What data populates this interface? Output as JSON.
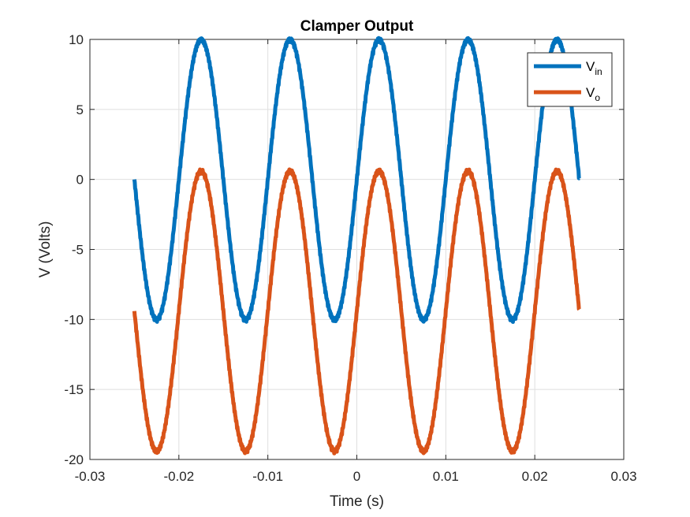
{
  "chart_data": {
    "type": "line",
    "title": "Clamper Output",
    "xlabel": "Time (s)",
    "ylabel": "V (Volts)",
    "xlim": [
      -0.03,
      0.03
    ],
    "ylim": [
      -20,
      10
    ],
    "xticks": [
      -0.03,
      -0.02,
      -0.01,
      0,
      0.01,
      0.02,
      0.03
    ],
    "xtick_labels": [
      "-0.03",
      "-0.02",
      "-0.01",
      "0",
      "0.01",
      "0.02",
      "0.03"
    ],
    "yticks": [
      -20,
      -15,
      -10,
      -5,
      0,
      5,
      10
    ],
    "ytick_labels": [
      "-20",
      "-15",
      "-10",
      "-5",
      "0",
      "5",
      "10"
    ],
    "grid": true,
    "legend_position": "top-right",
    "x_range": [
      -0.025,
      0.025
    ],
    "series": [
      {
        "name_main": "V",
        "name_sub": "in",
        "color": "#0072BD",
        "amplitude": 10,
        "offset": 0,
        "frequency_hz": 100,
        "phase_note": "sine starting at 0 at t=-0.025, peaks near -0.0175, -0.0075, 0.0025, 0.0125, 0.0225"
      },
      {
        "name_main": "V",
        "name_sub": "o",
        "color": "#D95319",
        "amplitude": 10,
        "offset": -9.4,
        "frequency_hz": 100,
        "phase_note": "same waveform as Vin shifted down ~9.4 V; peaks ~0.6 V, troughs ~-19.4 V"
      }
    ]
  }
}
